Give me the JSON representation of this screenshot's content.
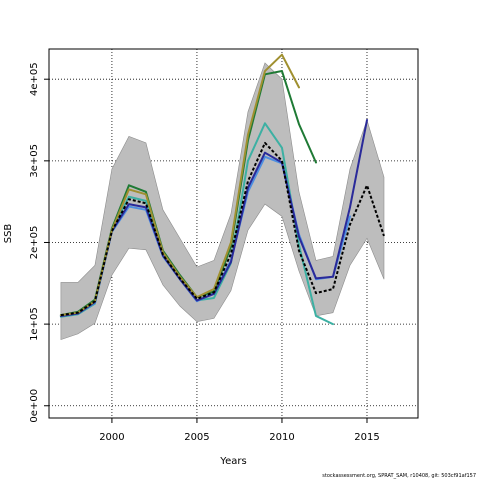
{
  "credit": "stockassessment.org, SPRAT_SAM, r10408, git: 503cf91af157",
  "colors": {
    "band": "#bdbdbd",
    "band_edge": "#8c8c8c",
    "final": "#000000",
    "grid": "#000000"
  },
  "chart_data": {
    "type": "line",
    "title": "",
    "xlabel": "Years",
    "ylabel": "SSB",
    "xlim": [
      1996.3,
      2018.0
    ],
    "ylim": [
      -15000,
      437000
    ],
    "x_ticks": [
      2000,
      2005,
      2010,
      2015
    ],
    "x_tick_labels": [
      "2000",
      "2005",
      "2010",
      "2015"
    ],
    "y_ticks": [
      0,
      100000,
      200000,
      300000,
      400000
    ],
    "y_tick_labels": [
      "0e+00",
      "1e+05",
      "2e+05",
      "3e+05",
      "4e+05"
    ],
    "grid": true,
    "confidence_band": {
      "x": [
        1997,
        1998,
        1999,
        2000,
        2001,
        2002,
        2003,
        2004,
        2005,
        2006,
        2007,
        2008,
        2009,
        2010,
        2011,
        2012,
        2013,
        2014,
        2015,
        2016
      ],
      "lower": [
        81000,
        88000,
        101000,
        160000,
        193000,
        191000,
        148000,
        122000,
        103000,
        107000,
        141000,
        215000,
        247000,
        232000,
        165000,
        110000,
        114000,
        172000,
        205000,
        155000
      ],
      "upper": [
        151000,
        151000,
        172000,
        290000,
        330000,
        322000,
        240000,
        205000,
        170000,
        178000,
        235000,
        360000,
        420000,
        400000,
        262000,
        178000,
        183000,
        290000,
        350000,
        280000
      ]
    },
    "series": [
      {
        "color": "#3cb0a3",
        "x": [
          1997,
          1998,
          1999,
          2000,
          2001,
          2002,
          2003,
          2004,
          2005,
          2006,
          2007,
          2008,
          2009,
          2010,
          2011,
          2012,
          2013
        ],
        "values": [
          109000,
          112000,
          125000,
          215000,
          256000,
          251000,
          186000,
          156000,
          129000,
          132000,
          175000,
          300000,
          346000,
          316000,
          197000,
          110000,
          100000
        ]
      },
      {
        "color": "#4d8ee0",
        "x": [
          1997,
          1998,
          1999,
          2000,
          2001,
          2002,
          2003,
          2004,
          2005,
          2006,
          2007,
          2008,
          2009,
          2010,
          2011,
          2012,
          2013,
          2014
        ],
        "values": [
          110000,
          113000,
          126000,
          213000,
          244000,
          240000,
          183000,
          155000,
          128000,
          138000,
          178000,
          262000,
          305000,
          297000,
          210000,
          155000,
          158000,
          232000
        ]
      },
      {
        "color": "#2a2a9a",
        "x": [
          1997,
          1998,
          1999,
          2000,
          2001,
          2002,
          2003,
          2004,
          2005,
          2006,
          2007,
          2008,
          2009,
          2010,
          2011,
          2012,
          2013,
          2014,
          2015
        ],
        "values": [
          110000,
          113000,
          127000,
          214000,
          247000,
          243000,
          184000,
          155000,
          129000,
          137000,
          176000,
          267000,
          310000,
          298000,
          207000,
          156000,
          158000,
          243000,
          350000
        ]
      },
      {
        "color": "#1f7a35",
        "x": [
          1997,
          1998,
          1999,
          2000,
          2001,
          2002,
          2003,
          2004,
          2005,
          2006,
          2007,
          2008,
          2009,
          2010,
          2011,
          2012
        ],
        "values": [
          111000,
          115000,
          130000,
          217000,
          270000,
          262000,
          190000,
          160000,
          133000,
          140000,
          195000,
          325000,
          406000,
          410000,
          345000,
          298000
        ]
      },
      {
        "color": "#a09030",
        "x": [
          1997,
          1998,
          1999,
          2000,
          2001,
          2002,
          2003,
          2004,
          2005,
          2006,
          2007,
          2008,
          2009,
          2010,
          2011
        ],
        "values": [
          111000,
          114000,
          128000,
          215000,
          265000,
          259000,
          188000,
          158000,
          133000,
          143000,
          200000,
          332000,
          410000,
          430000,
          390000
        ]
      },
      {
        "color": "#000000",
        "dashed": true,
        "x": [
          1997,
          1998,
          1999,
          2000,
          2001,
          2002,
          2003,
          2004,
          2005,
          2006,
          2007,
          2008,
          2009,
          2010,
          2011,
          2012,
          2013,
          2014,
          2015,
          2016
        ],
        "values": [
          111000,
          114000,
          128000,
          214000,
          253000,
          248000,
          185000,
          156000,
          131000,
          139000,
          186000,
          275000,
          322000,
          300000,
          190000,
          138000,
          143000,
          222000,
          270000,
          208000
        ]
      }
    ]
  }
}
